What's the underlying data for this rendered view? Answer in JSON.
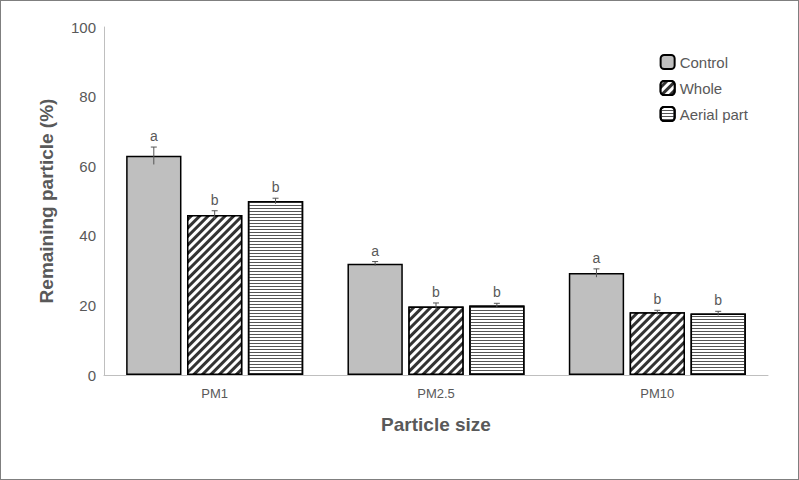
{
  "chart_data": {
    "type": "bar",
    "categories": [
      "PM1",
      "PM2.5",
      "PM10"
    ],
    "x_label": "Particle size",
    "y_label": "Remaining particle (%)",
    "ylim": [
      0,
      100
    ],
    "yticks": [
      0,
      20,
      40,
      60,
      80,
      100
    ],
    "grid": false,
    "legend": "upper right",
    "series": [
      {
        "name": "Control",
        "color": "#bfbfbf",
        "values": [
          63,
          32,
          29.3
        ],
        "errors": [
          2.5,
          0.6,
          1.2
        ],
        "letters": [
          "a",
          "a",
          "a"
        ]
      },
      {
        "name": "Whole",
        "color": "#333333",
        "values": [
          46,
          19.7,
          18
        ],
        "errors": [
          1.2,
          1,
          0.6
        ],
        "letters": [
          "b",
          "b",
          "b"
        ]
      },
      {
        "name": "Aerial part",
        "color": "#ffffff",
        "values": [
          50,
          20,
          17.7
        ],
        "errors": [
          0.8,
          0.6,
          0.6
        ],
        "letters": [
          "b",
          "b",
          "b"
        ]
      }
    ]
  }
}
